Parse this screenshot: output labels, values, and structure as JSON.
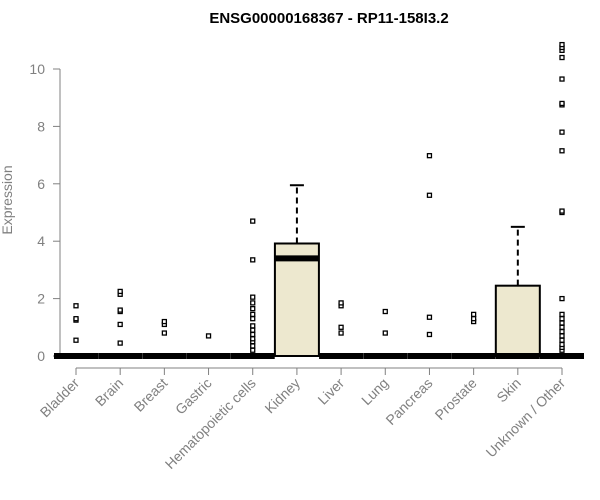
{
  "chart_data": {
    "type": "box",
    "title": "ENSG00000168367 - RP11-158I3.2",
    "xlabel": "",
    "ylabel": "Expression",
    "ylim": [
      0,
      10.9
    ],
    "yticks": [
      0,
      2,
      4,
      6,
      8,
      10
    ],
    "grid": false,
    "box_fill": "#ede8cf",
    "categories": [
      "Bladder",
      "Brain",
      "Breast",
      "Gastric",
      "Hematopoietic cells",
      "Kidney",
      "Liver",
      "Lung",
      "Pancreas",
      "Prostate",
      "Skin",
      "Unknown / Other"
    ],
    "boxes": [
      {
        "q1": 0,
        "median": 0,
        "q3": 0,
        "whisker_low": 0,
        "whisker_high": 0,
        "outliers": [
          0.55,
          1.25,
          1.3,
          1.75
        ]
      },
      {
        "q1": 0,
        "median": 0,
        "q3": 0,
        "whisker_low": 0,
        "whisker_high": 0,
        "outliers": [
          0.45,
          1.1,
          1.55,
          1.6,
          2.15,
          2.25
        ]
      },
      {
        "q1": 0,
        "median": 0,
        "q3": 0,
        "whisker_low": 0,
        "whisker_high": 0,
        "outliers": [
          0.8,
          1.1,
          1.2
        ]
      },
      {
        "q1": 0,
        "median": 0,
        "q3": 0,
        "whisker_low": 0,
        "whisker_high": 0,
        "outliers": [
          0.7
        ]
      },
      {
        "q1": 0,
        "median": 0,
        "q3": 0,
        "whisker_low": 0,
        "whisker_high": 0,
        "outliers": [
          0.2,
          0.35,
          0.5,
          0.6,
          0.75,
          0.9,
          1.05,
          1.3,
          1.45,
          1.65,
          1.85,
          2.05,
          3.35,
          4.7
        ]
      },
      {
        "q1": 0,
        "median": 3.4,
        "q3": 3.92,
        "whisker_low": 0,
        "whisker_high": 5.95,
        "outliers": []
      },
      {
        "q1": 0,
        "median": 0,
        "q3": 0,
        "whisker_low": 0,
        "whisker_high": 0,
        "outliers": [
          0.8,
          1.0,
          1.75,
          1.85
        ]
      },
      {
        "q1": 0,
        "median": 0,
        "q3": 0,
        "whisker_low": 0,
        "whisker_high": 0,
        "outliers": [
          0.8,
          1.55
        ]
      },
      {
        "q1": 0,
        "median": 0,
        "q3": 0,
        "whisker_low": 0,
        "whisker_high": 0,
        "outliers": [
          0.75,
          1.35,
          5.6,
          6.98
        ]
      },
      {
        "q1": 0,
        "median": 0,
        "q3": 0,
        "whisker_low": 0,
        "whisker_high": 0,
        "outliers": [
          1.2,
          1.3,
          1.45
        ]
      },
      {
        "q1": 0,
        "median": 0,
        "q3": 2.45,
        "whisker_low": 0,
        "whisker_high": 4.5,
        "outliers": []
      },
      {
        "q1": 0,
        "median": 0,
        "q3": 0,
        "whisker_low": 0,
        "whisker_high": 0,
        "outliers": [
          0.2,
          0.3,
          0.4,
          0.55,
          0.7,
          0.85,
          1.0,
          1.15,
          1.3,
          1.45,
          2.0,
          5.0,
          5.05,
          7.15,
          7.8,
          8.75,
          8.8,
          9.65,
          10.4,
          10.65,
          10.75,
          10.85
        ]
      }
    ]
  }
}
